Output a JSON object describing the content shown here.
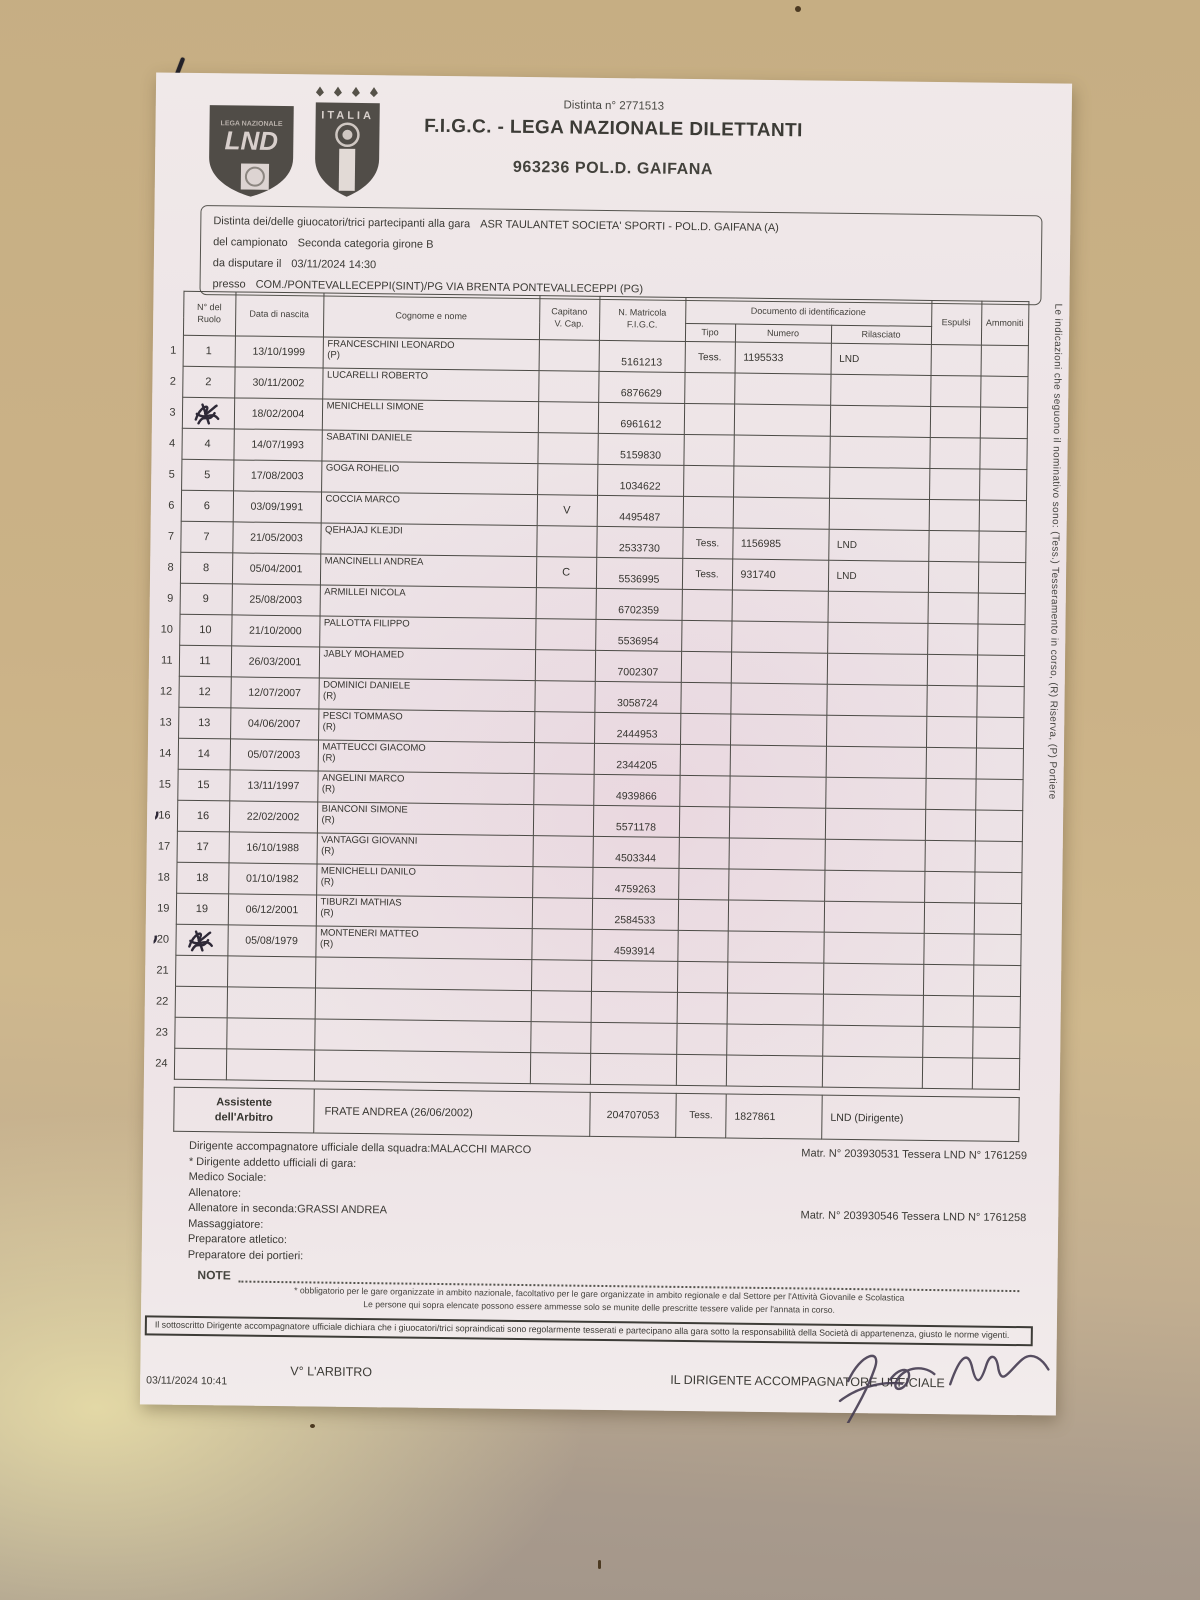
{
  "colors": {
    "ink": "#2e2937",
    "paper": "#ece2e6",
    "desk": "#cbb287",
    "line": "#4c4b46"
  },
  "header": {
    "distinta_no": "Distinta n° 2771513",
    "federation": "F.I.G.C. - LEGA NAZIONALE DILETTANTI",
    "team": "963236  POL.D. GAIFANA",
    "logo_lnd": "LND",
    "logo_italia": "ITALIA"
  },
  "match_info": {
    "line1_label": "Distinta dei/delle giuocatori/trici partecipanti alla gara",
    "line1_value": "ASR TAULANTET SOCIETA' SPORTI - POL.D. GAIFANA (A)",
    "line2_label": "del campionato",
    "line2_value": "Seconda categoria girone B",
    "line3_label": "da disputare il",
    "line3_value": "03/11/2024 14:30",
    "line4_label": "presso",
    "line4_value": "COM./PONTEVALLECEPPI(SINT)/PG VIA BRENTA PONTEVALLECEPPI (PG)"
  },
  "table": {
    "headers": {
      "ruolo": "N° del\nRuolo",
      "nascita": "Data di nascita",
      "nome": "Cognome e nome",
      "capitano": "Capitano\nV. Cap.",
      "matricola": "N. Matricola\nF.I.G.C.",
      "documento": "Documento di identificazione",
      "tipo": "Tipo",
      "numero": "Numero",
      "rilasciato": "Rilasciato",
      "espulsi": "Espulsi",
      "ammoniti": "Ammoniti"
    },
    "players": [
      {
        "idx": "1",
        "ruolo": "1",
        "nascita": "13/10/1999",
        "nome": "FRANCESCHINI LEONARDO",
        "nota": "(P)",
        "cap": "",
        "matricola": "5161213",
        "tipo": "Tess.",
        "numero": "1195533",
        "rilasciato": "LND"
      },
      {
        "idx": "2",
        "ruolo": "2",
        "nascita": "30/11/2002",
        "nome": "LUCARELLI ROBERTO",
        "nota": "",
        "cap": "",
        "matricola": "6876629",
        "tipo": "",
        "numero": "",
        "rilasciato": ""
      },
      {
        "idx": "3",
        "ruolo": "",
        "ruolo_scribble": true,
        "nascita": "18/02/2004",
        "nome": "MENICHELLI SIMONE",
        "nota": "",
        "cap": "",
        "matricola": "6961612",
        "tipo": "",
        "numero": "",
        "rilasciato": ""
      },
      {
        "idx": "4",
        "ruolo": "4",
        "nascita": "14/07/1993",
        "nome": "SABATINI DANIELE",
        "nota": "",
        "cap": "",
        "matricola": "5159830",
        "tipo": "",
        "numero": "",
        "rilasciato": ""
      },
      {
        "idx": "5",
        "ruolo": "5",
        "nascita": "17/08/2003",
        "nome": "GOGA ROHELIO",
        "nota": "",
        "cap": "",
        "matricola": "1034622",
        "tipo": "",
        "numero": "",
        "rilasciato": ""
      },
      {
        "idx": "6",
        "ruolo": "6",
        "nascita": "03/09/1991",
        "nome": "COCCIA MARCO",
        "nota": "",
        "cap": "V",
        "matricola": "4495487",
        "tipo": "",
        "numero": "",
        "rilasciato": ""
      },
      {
        "idx": "7",
        "ruolo": "7",
        "nascita": "21/05/2003",
        "nome": "QEHAJAJ KLEJDI",
        "nota": "",
        "cap": "",
        "matricola": "2533730",
        "tipo": "Tess.",
        "numero": "1156985",
        "rilasciato": "LND"
      },
      {
        "idx": "8",
        "ruolo": "8",
        "nascita": "05/04/2001",
        "nome": "MANCINELLI ANDREA",
        "nota": "",
        "cap": "C",
        "matricola": "5536995",
        "tipo": "Tess.",
        "numero": "931740",
        "rilasciato": "LND"
      },
      {
        "idx": "9",
        "ruolo": "9",
        "nascita": "25/08/2003",
        "nome": "ARMILLEI NICOLA",
        "nota": "",
        "cap": "",
        "matricola": "6702359",
        "tipo": "",
        "numero": "",
        "rilasciato": ""
      },
      {
        "idx": "10",
        "ruolo": "10",
        "nascita": "21/10/2000",
        "nome": "PALLOTTA FILIPPO",
        "nota": "",
        "cap": "",
        "matricola": "5536954",
        "tipo": "",
        "numero": "",
        "rilasciato": ""
      },
      {
        "idx": "11",
        "ruolo": "11",
        "nascita": "26/03/2001",
        "nome": "JABLY MOHAMED",
        "nota": "",
        "cap": "",
        "matricola": "7002307",
        "tipo": "",
        "numero": "",
        "rilasciato": ""
      },
      {
        "idx": "12",
        "ruolo": "12",
        "nascita": "12/07/2007",
        "nome": "DOMINICI DANIELE",
        "nota": "(R)",
        "cap": "",
        "matricola": "3058724",
        "tipo": "",
        "numero": "",
        "rilasciato": ""
      },
      {
        "idx": "13",
        "ruolo": "13",
        "nascita": "04/06/2007",
        "nome": "PESCI TOMMASO",
        "nota": "(R)",
        "cap": "",
        "matricola": "2444953",
        "tipo": "",
        "numero": "",
        "rilasciato": ""
      },
      {
        "idx": "14",
        "ruolo": "14",
        "nascita": "05/07/2003",
        "nome": "MATTEUCCI GIACOMO",
        "nota": "(R)",
        "cap": "",
        "matricola": "2344205",
        "tipo": "",
        "numero": "",
        "rilasciato": ""
      },
      {
        "idx": "15",
        "ruolo": "15",
        "nascita": "13/11/1997",
        "nome": "ANGELINI MARCO",
        "nota": "(R)",
        "cap": "",
        "matricola": "4939866",
        "tipo": "",
        "numero": "",
        "rilasciato": ""
      },
      {
        "idx": "16",
        "ruolo": "16",
        "margin_circles": true,
        "nascita": "22/02/2002",
        "nome": "BIANCONI SIMONE",
        "nota": "(R)",
        "cap": "",
        "matricola": "5571178",
        "tipo": "",
        "numero": "",
        "rilasciato": ""
      },
      {
        "idx": "17",
        "ruolo": "17",
        "nascita": "16/10/1988",
        "nome": "VANTAGGI GIOVANNI",
        "nota": "(R)",
        "cap": "",
        "matricola": "4503344",
        "tipo": "",
        "numero": "",
        "rilasciato": ""
      },
      {
        "idx": "18",
        "ruolo": "18",
        "nascita": "01/10/1982",
        "nome": "MENICHELLI DANILO",
        "nota": "(R)",
        "cap": "",
        "matricola": "4759263",
        "tipo": "",
        "numero": "",
        "rilasciato": ""
      },
      {
        "idx": "19",
        "ruolo": "19",
        "nascita": "06/12/2001",
        "nome": "TIBURZI MATHIAS",
        "nota": "(R)",
        "cap": "",
        "matricola": "2584533",
        "tipo": "",
        "numero": "",
        "rilasciato": ""
      },
      {
        "idx": "20",
        "ruolo": "",
        "ruolo_scribble": true,
        "margin_circles": true,
        "nascita": "05/08/1979",
        "nome": "MONTENERI MATTEO",
        "nota": "(R)",
        "cap": "",
        "matricola": "4593914",
        "tipo": "",
        "numero": "",
        "rilasciato": ""
      },
      {
        "idx": "21",
        "ruolo": "",
        "nascita": "",
        "nome": "",
        "nota": "",
        "cap": "",
        "matricola": "",
        "tipo": "",
        "numero": "",
        "rilasciato": ""
      },
      {
        "idx": "22",
        "ruolo": "",
        "nascita": "",
        "nome": "",
        "nota": "",
        "cap": "",
        "matricola": "",
        "tipo": "",
        "numero": "",
        "rilasciato": ""
      },
      {
        "idx": "23",
        "ruolo": "",
        "nascita": "",
        "nome": "",
        "nota": "",
        "cap": "",
        "matricola": "",
        "tipo": "",
        "numero": "",
        "rilasciato": ""
      },
      {
        "idx": "24",
        "ruolo": "",
        "nascita": "",
        "nome": "",
        "nota": "",
        "cap": "",
        "matricola": "",
        "tipo": "",
        "numero": "",
        "rilasciato": ""
      }
    ]
  },
  "assistant": {
    "label": "Assistente\ndell'Arbitro",
    "name": "FRATE ANDREA (26/06/2002)",
    "matricola": "204707053",
    "tipo": "Tess.",
    "numero": "1827861",
    "rilasciato": "LND   (Dirigente)"
  },
  "officials": {
    "lines": [
      {
        "label": "Dirigente accompagnatore ufficiale della squadra:",
        "value": "MALACCHI MARCO",
        "right": "Matr. N° 203930531 Tessera LND N° 1761259"
      },
      {
        "label": "* Dirigente addetto ufficiali di gara:",
        "value": "",
        "right": ""
      },
      {
        "label": "Medico Sociale:",
        "value": "",
        "right": ""
      },
      {
        "label": "Allenatore:",
        "value": "",
        "right": ""
      },
      {
        "label": "Allenatore in seconda:",
        "value": "GRASSI ANDREA",
        "right": "Matr. N° 203930546 Tessera LND N° 1761258"
      },
      {
        "label": "Massaggiatore:",
        "value": "",
        "right": ""
      },
      {
        "label": "Preparatore atletico:",
        "value": "",
        "right": ""
      },
      {
        "label": "Preparatore dei portieri:",
        "value": "",
        "right": ""
      }
    ]
  },
  "notes": {
    "note_label": "NOTE",
    "micro1": "* obbligatorio per le gare organizzate in ambito nazionale, facoltativo per le gare organizzate in ambito regionale e dal Settore per l'Attività Giovanile e Scolastica",
    "micro2": "Le persone qui sopra elencate possono essere ammesse solo se munite delle prescritte tessere valide per l'annata in corso."
  },
  "declaration": "Il sottoscritto Dirigente accompagnatore ufficiale dichiara che i giuocatori/trici sopraindicati sono regolarmente tesserati e partecipano alla gara sotto la responsabilità della Società di appartenenza, giusto le norme vigenti.",
  "signatures": {
    "referee": "V° L'ARBITRO",
    "manager": "IL DIRIGENTE ACCOMPAGNATORE UFFICIALE"
  },
  "footer_timestamp": "03/11/2024 10:41",
  "side_note": "Le indicazioni che seguono il nominativo sono: (Tess.) Tesseramento in corso, (R) Riserva, (P) Portiere"
}
